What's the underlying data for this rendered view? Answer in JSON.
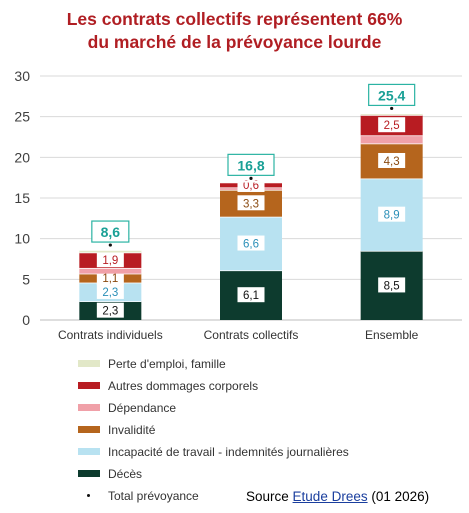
{
  "title": "Les contrats collectifs représentent 66%\ndu marché de la prévoyance lourde",
  "title_line1": "Les contrats collectifs représentent 66%",
  "title_line2": "du marché de la prévoyance lourde",
  "source": {
    "prefix": "Source",
    "link": "Etude Drees",
    "suffix": " (01 2026)"
  },
  "chart_data": {
    "type": "bar",
    "stacked": true,
    "title": "Les contrats collectifs représentent 66% du marché de la prévoyance lourde",
    "categories": [
      "Contrats individuels",
      "Contrats collectifs",
      "Ensemble"
    ],
    "ylim": [
      0,
      30
    ],
    "yticks": [
      0,
      5,
      10,
      15,
      20,
      25,
      30
    ],
    "grid": true,
    "legend_position": "bottom",
    "series": [
      {
        "name": "Décès",
        "color": "#0d3b2e",
        "values": [
          2.3,
          6.1,
          8.5
        ],
        "labels": [
          "2,3",
          "6,1",
          "8,5"
        ]
      },
      {
        "name": "Incapacité de travail - indemnités journalières",
        "color": "#b8e2f1",
        "values": [
          2.3,
          6.6,
          8.9
        ],
        "labels": [
          "2,3",
          "6,6",
          "8,9"
        ]
      },
      {
        "name": "Invalidité",
        "color": "#b5651d",
        "values": [
          1.1,
          3.3,
          4.3
        ],
        "labels": [
          "1,1",
          "3,3",
          "4,3"
        ]
      },
      {
        "name": "Dépendance",
        "color": "#f0a0a8",
        "values": [
          0.7,
          0.3,
          1.0
        ],
        "labels": [
          "",
          "",
          ""
        ]
      },
      {
        "name": "Autres dommages corporels",
        "color": "#b81c22",
        "values": [
          1.9,
          0.6,
          2.5
        ],
        "labels": [
          "1,9",
          "0,6",
          "2,5"
        ]
      },
      {
        "name": "Perte d'emploi, famille",
        "color": "#e2e8c8",
        "values": [
          0.3,
          0.1,
          0.2
        ],
        "labels": [
          "",
          "",
          ""
        ]
      }
    ],
    "totals": {
      "name": "Total prévoyance",
      "values": [
        8.6,
        16.8,
        25.4
      ],
      "labels": [
        "8,6",
        "16,8",
        "25,4"
      ]
    },
    "legend_order": [
      "Perte d'emploi, famille",
      "Autres dommages corporels",
      "Dépendance",
      "Invalidité",
      "Incapacité de travail - indemnités journalières",
      "Décès",
      "Total prévoyance"
    ]
  }
}
